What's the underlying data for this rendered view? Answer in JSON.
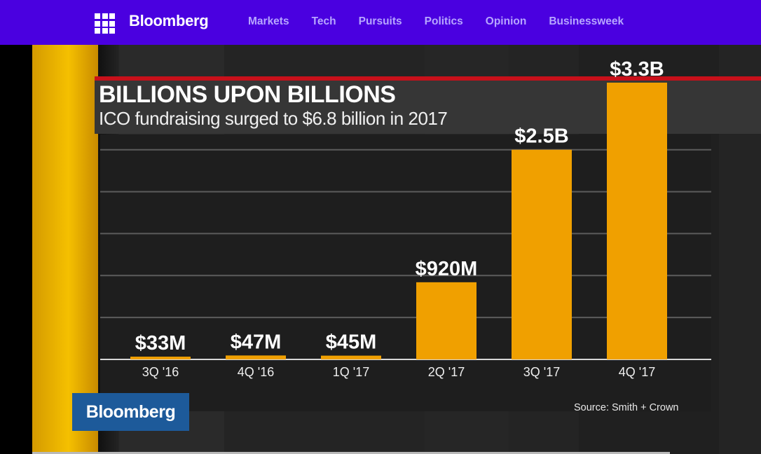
{
  "header": {
    "menu_icon": "grid-menu-icon",
    "logo": "Bloomberg",
    "nav": [
      "Markets",
      "Tech",
      "Pursuits",
      "Politics",
      "Opinion",
      "Businessweek"
    ],
    "background_color": "#4a00e0",
    "link_color": "#b7a6ff"
  },
  "video": {
    "title": "BILLIONS UPON BILLIONS",
    "subtitle": "ICO fundraising surged to $6.8 billion in 2017",
    "logo": "Bloomberg",
    "source": "Source: Smith + Crown",
    "accent_color": "#f0a000",
    "title_rule_color": "#c8101a"
  },
  "chart_data": {
    "type": "bar",
    "title": "BILLIONS UPON BILLIONS",
    "subtitle": "ICO fundraising surged to $6.8 billion in 2017",
    "categories": [
      "3Q '16",
      "4Q '16",
      "1Q '17",
      "2Q '17",
      "3Q '17",
      "4Q '17"
    ],
    "values": [
      0.033,
      0.047,
      0.045,
      0.92,
      2.5,
      3.3
    ],
    "data_labels": [
      "$33M",
      "$47M",
      "$45M",
      "$920M",
      "$2.5B",
      "$3.3B"
    ],
    "unit": "billion USD",
    "ylim": [
      0,
      3.5
    ],
    "grid": true,
    "bar_color": "#f0a000",
    "source": "Source: Smith + Crown"
  }
}
